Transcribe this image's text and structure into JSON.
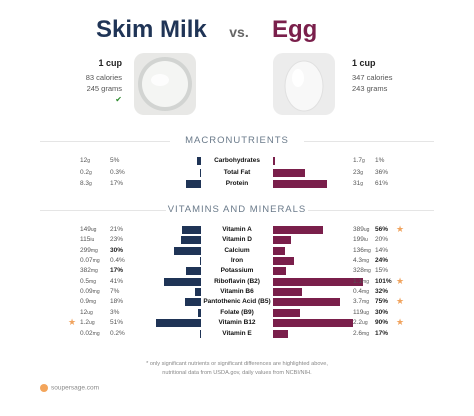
{
  "header": {
    "left_title": "Skim Milk",
    "vs": "vs.",
    "right_title": "Egg"
  },
  "left_stats": {
    "serving": "1 cup",
    "calories": "83 calories",
    "grams": "245 grams",
    "check": "✔"
  },
  "right_stats": {
    "serving": "1 cup",
    "calories": "347 calories",
    "grams": "243 grams"
  },
  "colors": {
    "left": "#1f3456",
    "right": "#7a1f4b",
    "star": "#f0a35e"
  },
  "sections": {
    "macros": "MACRONUTRIENTS",
    "vitamins": "VITAMINS AND MINERALS"
  },
  "chart_data": {
    "type": "bar",
    "orientation": "horizontal-diverging",
    "series": [
      {
        "name": "Skim Milk",
        "side": "left"
      },
      {
        "name": "Egg",
        "side": "right"
      }
    ],
    "macros": [
      {
        "name": "Carbohydrates",
        "left_amt": "12",
        "left_unit": "g",
        "left_pct": "5%",
        "left_val": 5,
        "right_amt": "1.7",
        "right_unit": "g",
        "right_pct": "1%",
        "right_val": 1
      },
      {
        "name": "Total Fat",
        "left_amt": "0.2",
        "left_unit": "g",
        "left_pct": "0.3%",
        "left_val": 0.3,
        "right_amt": "23",
        "right_unit": "g",
        "right_pct": "36%",
        "right_val": 36
      },
      {
        "name": "Protein",
        "left_amt": "8.3",
        "left_unit": "g",
        "left_pct": "17%",
        "left_val": 17,
        "right_amt": "31",
        "right_unit": "g",
        "right_pct": "61%",
        "right_val": 61
      }
    ],
    "vitamins": [
      {
        "name": "Vitamin A",
        "left_amt": "149",
        "left_unit": "ug",
        "left_pct": "21%",
        "left_val": 21,
        "right_amt": "389",
        "right_unit": "ug",
        "right_pct": "56%",
        "right_val": 56,
        "right_bold": true,
        "right_star": true
      },
      {
        "name": "Vitamin D",
        "left_amt": "115",
        "left_unit": "iu",
        "left_pct": "23%",
        "left_val": 23,
        "right_amt": "199",
        "right_unit": "iu",
        "right_pct": "20%",
        "right_val": 20
      },
      {
        "name": "Calcium",
        "left_amt": "299",
        "left_unit": "mg",
        "left_pct": "30%",
        "left_val": 30,
        "left_bold": true,
        "right_amt": "136",
        "right_unit": "mg",
        "right_pct": "14%",
        "right_val": 14
      },
      {
        "name": "Iron",
        "left_amt": "0.07",
        "left_unit": "mg",
        "left_pct": "0.4%",
        "left_val": 0.4,
        "right_amt": "4.3",
        "right_unit": "mg",
        "right_pct": "24%",
        "right_val": 24,
        "right_bold": true
      },
      {
        "name": "Potassium",
        "left_amt": "382",
        "left_unit": "mg",
        "left_pct": "17%",
        "left_val": 17,
        "left_bold": true,
        "right_amt": "328",
        "right_unit": "mg",
        "right_pct": "15%",
        "right_val": 15
      },
      {
        "name": "Riboflavin (B2)",
        "left_amt": "0.5",
        "left_unit": "mg",
        "left_pct": "41%",
        "left_val": 41,
        "right_amt": "1.1",
        "right_unit": "mg",
        "right_pct": "101%",
        "right_val": 101,
        "right_bold": true,
        "right_star": true
      },
      {
        "name": "Vitamin B6",
        "left_amt": "0.09",
        "left_unit": "mg",
        "left_pct": "7%",
        "left_val": 7,
        "right_amt": "0.4",
        "right_unit": "mg",
        "right_pct": "32%",
        "right_val": 32,
        "right_bold": true
      },
      {
        "name": "Pantothenic Acid (B5)",
        "left_amt": "0.9",
        "left_unit": "mg",
        "left_pct": "18%",
        "left_val": 18,
        "right_amt": "3.7",
        "right_unit": "mg",
        "right_pct": "75%",
        "right_val": 75,
        "right_bold": true,
        "right_star": true
      },
      {
        "name": "Folate (B9)",
        "left_amt": "12",
        "left_unit": "ug",
        "left_pct": "3%",
        "left_val": 3,
        "right_amt": "119",
        "right_unit": "ug",
        "right_pct": "30%",
        "right_val": 30,
        "right_bold": true
      },
      {
        "name": "Vitamin B12",
        "left_amt": "1.2",
        "left_unit": "ug",
        "left_pct": "51%",
        "left_val": 51,
        "left_star": true,
        "right_amt": "2.2",
        "right_unit": "ug",
        "right_pct": "90%",
        "right_val": 90,
        "right_bold": true,
        "right_star": true
      },
      {
        "name": "Vitamin E",
        "left_amt": "0.02",
        "left_unit": "mg",
        "left_pct": "0.2%",
        "left_val": 0.2,
        "right_amt": "2.6",
        "right_unit": "mg",
        "right_pct": "17%",
        "right_val": 17,
        "right_bold": true
      }
    ]
  },
  "footnote": {
    "line1": "* only significant nutrients or significant differences are highlighted above,",
    "line2": "nutritional data from USDA.gov, daily values from NCBI/NIH."
  },
  "brand": "soupersage.com"
}
